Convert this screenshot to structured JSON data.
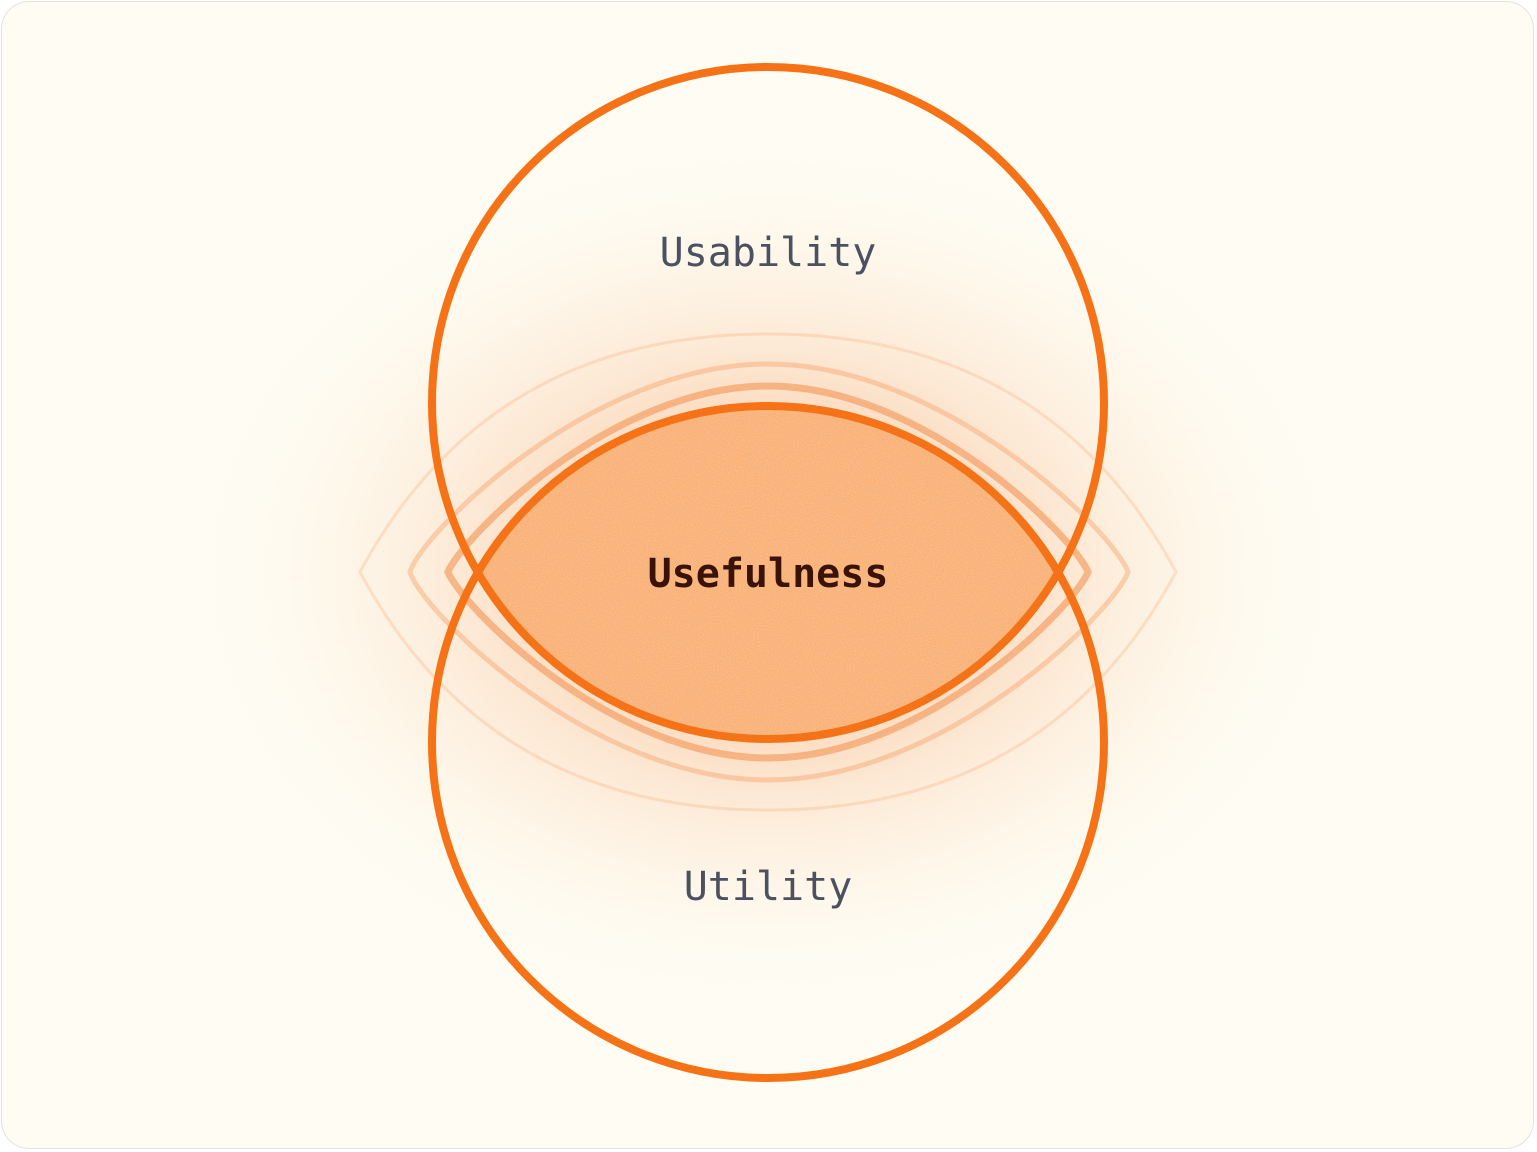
{
  "diagram": {
    "sets": [
      {
        "label": "Usability"
      },
      {
        "label": "Utility"
      }
    ],
    "intersection": {
      "label": "Usefulness"
    }
  },
  "colors": {
    "background": "#fefcf3",
    "circle_stroke": "#f57316",
    "intersection_fill": "#f8a458",
    "set_label": "#4b5160",
    "intersection_label": "#3a1207"
  }
}
